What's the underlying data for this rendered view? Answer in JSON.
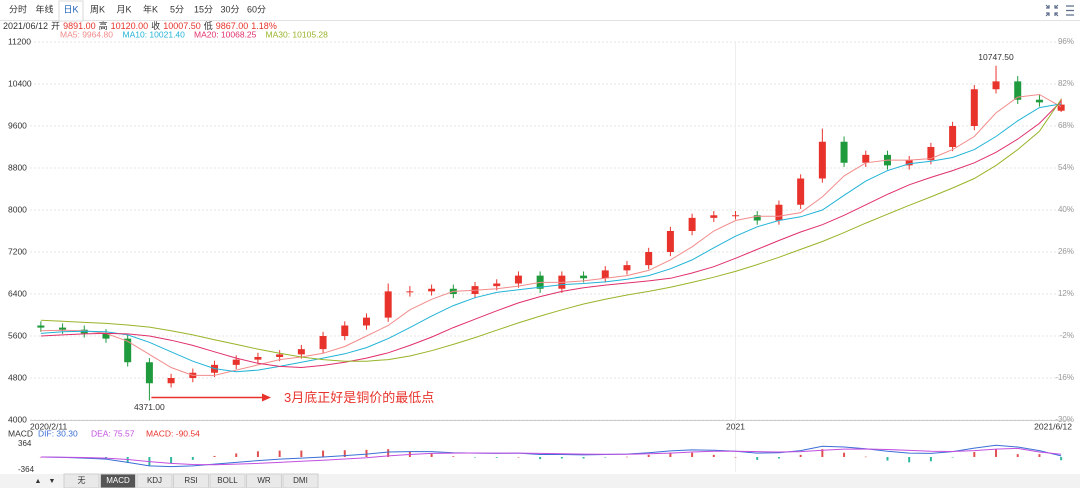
{
  "toolbar": {
    "tabs": [
      "分时",
      "年线",
      "日K",
      "周K",
      "月K",
      "年K",
      "5分",
      "15分",
      "30分",
      "60分"
    ],
    "active": 2
  },
  "info": [
    "2021/06/12",
    "开",
    "9891.00",
    "高",
    "10120.00",
    "收",
    "10007.50",
    "低",
    "9867.00",
    "1.18%"
  ],
  "chart_data": [
    {
      "type": "candlestick",
      "categories": [
        "2020/2/11",
        null,
        null,
        null,
        null,
        null,
        null,
        null,
        null,
        null,
        null,
        null,
        null,
        null,
        null,
        null,
        null,
        null,
        null,
        null,
        null,
        null,
        null,
        null,
        null,
        null,
        null,
        null,
        null,
        null,
        null,
        null,
        "2021",
        null,
        null,
        null,
        null,
        null,
        null,
        null,
        null,
        null,
        null,
        null,
        null,
        null,
        null,
        "2021/6/12"
      ],
      "open": [
        5800,
        5760,
        5720,
        5650,
        5550,
        5100,
        4700,
        4800,
        4900,
        5050,
        5150,
        5200,
        5250,
        5350,
        5600,
        5800,
        5950,
        6450,
        6450,
        6500,
        6400,
        6550,
        6600,
        6750,
        6500,
        6750,
        6700,
        6850,
        6950,
        7200,
        7600,
        7850,
        7900,
        7900,
        7800,
        8100,
        8600,
        9300,
        8900,
        9050,
        8850,
        8950,
        9200,
        9600,
        10300,
        10450,
        10100,
        9891
      ],
      "high": [
        5880,
        5840,
        5800,
        5730,
        5630,
        5180,
        4880,
        4980,
        5130,
        5230,
        5280,
        5330,
        5430,
        5680,
        5880,
        6030,
        6600,
        6550,
        6580,
        6580,
        6630,
        6680,
        6830,
        6830,
        6830,
        6830,
        6930,
        7030,
        7280,
        7680,
        7930,
        7980,
        7980,
        7980,
        8180,
        8680,
        9550,
        9400,
        9130,
        9130,
        9030,
        9280,
        9680,
        10380,
        10747.5,
        10550,
        10200,
        10120
      ],
      "low": [
        5680,
        5640,
        5570,
        5470,
        5020,
        4371,
        4620,
        4720,
        4820,
        4970,
        5070,
        5120,
        5170,
        5270,
        5520,
        5720,
        5870,
        6350,
        6370,
        6320,
        6320,
        6470,
        6520,
        6420,
        6420,
        6620,
        6620,
        6770,
        6870,
        7120,
        7520,
        7770,
        7820,
        7720,
        7720,
        8020,
        8520,
        8820,
        8820,
        8770,
        8770,
        8870,
        9120,
        9520,
        10220,
        10020,
        9970,
        9867
      ],
      "close": [
        5760,
        5720,
        5650,
        5550,
        5100,
        4700,
        4800,
        4900,
        5050,
        5150,
        5200,
        5250,
        5350,
        5600,
        5800,
        5950,
        6450,
        6450,
        6500,
        6400,
        6550,
        6600,
        6750,
        6500,
        6750,
        6700,
        6850,
        6950,
        7200,
        7600,
        7850,
        7900,
        7900,
        7800,
        8100,
        8600,
        9300,
        8900,
        9050,
        8850,
        8950,
        9200,
        9600,
        10300,
        10450,
        10100,
        10050,
        10007.5
      ],
      "up_color": "#e8332c",
      "down_color": "#1f9a3c",
      "series": [
        {
          "name": "MA5",
          "label": "MA5: 9964.80",
          "color": "#f28b8b",
          "values": [
            5700,
            5710,
            5700,
            5650,
            5500,
            5250,
            5000,
            4850,
            4850,
            4950,
            5050,
            5150,
            5200,
            5270,
            5400,
            5600,
            5800,
            6100,
            6300,
            6450,
            6470,
            6500,
            6550,
            6620,
            6620,
            6650,
            6700,
            6750,
            6850,
            7050,
            7300,
            7600,
            7800,
            7880,
            7880,
            7950,
            8250,
            8650,
            8900,
            8950,
            8950,
            8980,
            9150,
            9400,
            9850,
            10150,
            10200,
            9964.8
          ]
        },
        {
          "name": "MA10",
          "label": "MA10: 10021.40",
          "color": "#22b3d6",
          "values": [
            5650,
            5680,
            5690,
            5680,
            5620,
            5480,
            5300,
            5120,
            4980,
            4920,
            4950,
            5020,
            5100,
            5180,
            5260,
            5380,
            5550,
            5760,
            5980,
            6180,
            6330,
            6430,
            6480,
            6530,
            6580,
            6600,
            6630,
            6680,
            6750,
            6880,
            7050,
            7280,
            7500,
            7680,
            7800,
            7870,
            8000,
            8280,
            8550,
            8750,
            8880,
            8930,
            9000,
            9150,
            9400,
            9700,
            9950,
            10021.4
          ]
        },
        {
          "name": "MA20",
          "label": "MA20: 10068.25",
          "color": "#e0306a",
          "values": [
            5600,
            5620,
            5640,
            5650,
            5640,
            5600,
            5520,
            5420,
            5300,
            5180,
            5080,
            5020,
            5000,
            5040,
            5100,
            5180,
            5280,
            5420,
            5580,
            5760,
            5920,
            6080,
            6230,
            6350,
            6450,
            6520,
            6570,
            6610,
            6650,
            6700,
            6800,
            6920,
            7080,
            7250,
            7420,
            7580,
            7720,
            7900,
            8100,
            8300,
            8480,
            8620,
            8750,
            8900,
            9100,
            9350,
            9650,
            10068.25
          ]
        },
        {
          "name": "MA30",
          "label": "MA30: 10105.28",
          "color": "#98b42a",
          "values": [
            5900,
            5880,
            5860,
            5840,
            5810,
            5770,
            5700,
            5620,
            5530,
            5440,
            5350,
            5270,
            5200,
            5150,
            5120,
            5120,
            5150,
            5220,
            5320,
            5440,
            5570,
            5710,
            5850,
            5980,
            6100,
            6210,
            6300,
            6380,
            6450,
            6530,
            6620,
            6720,
            6830,
            6960,
            7100,
            7250,
            7400,
            7570,
            7750,
            7920,
            8090,
            8250,
            8420,
            8600,
            8850,
            9150,
            9500,
            10105.28
          ]
        }
      ],
      "ylim": [
        4000,
        11200
      ],
      "yticks": [
        11200,
        10400,
        9600,
        8800,
        8000,
        7200,
        6400,
        5600,
        4800,
        4000
      ],
      "y2lim": [
        -30,
        96
      ],
      "y2ticks": [
        {
          "value": 96,
          "label": "96%"
        },
        {
          "value": 82,
          "label": "82%"
        },
        {
          "value": 68,
          "label": "68%"
        },
        {
          "value": 54,
          "label": "54%"
        },
        {
          "value": 40,
          "label": "40%"
        },
        {
          "value": 26,
          "label": "26%"
        },
        {
          "value": 12,
          "label": "12%"
        },
        {
          "value": -2,
          "label": "-2%"
        },
        {
          "value": -16,
          "label": "-16%"
        },
        {
          "value": -30,
          "label": "-30%"
        }
      ],
      "grid": true,
      "high_label": "10747.50",
      "low_label": "4371.00",
      "annotation": "3月底正好是铜价的最低点"
    },
    {
      "type": "macd",
      "title": "MACD",
      "series": [
        {
          "name": "DIF",
          "label": "DIF: 30.30",
          "color": "#3b6fd6",
          "values": [
            0,
            -10,
            -30,
            -60,
            -150,
            -250,
            -270,
            -250,
            -200,
            -150,
            -100,
            -60,
            -30,
            0,
            40,
            80,
            140,
            150,
            150,
            120,
            110,
            100,
            110,
            70,
            70,
            60,
            70,
            80,
            120,
            170,
            200,
            190,
            160,
            110,
            120,
            180,
            300,
            280,
            230,
            160,
            110,
            100,
            150,
            250,
            330,
            280,
            180,
            30.3
          ]
        },
        {
          "name": "DEA",
          "label": "DEA: 75.57",
          "color": "#c24fe0",
          "values": [
            0,
            -5,
            -15,
            -30,
            -70,
            -130,
            -180,
            -210,
            -215,
            -200,
            -180,
            -150,
            -120,
            -90,
            -55,
            -20,
            30,
            70,
            100,
            110,
            112,
            110,
            110,
            100,
            90,
            80,
            75,
            77,
            90,
            110,
            140,
            160,
            160,
            150,
            140,
            150,
            190,
            220,
            225,
            210,
            185,
            160,
            155,
            180,
            220,
            240,
            140,
            75.57
          ]
        }
      ],
      "histogram": {
        "label": "MACD: -90.54",
        "up_color": "#e05050",
        "down_color": "#2fb7a0",
        "values": [
          0,
          -10,
          -30,
          -60,
          -160,
          -240,
          -180,
          -80,
          30,
          100,
          160,
          180,
          180,
          180,
          190,
          200,
          220,
          160,
          100,
          20,
          -4,
          -20,
          0,
          -60,
          -40,
          -40,
          -10,
          6,
          60,
          120,
          120,
          60,
          0,
          -80,
          -40,
          60,
          220,
          120,
          10,
          -100,
          -150,
          -120,
          -10,
          140,
          220,
          80,
          80,
          -90.54
        ]
      },
      "ylim": [
        -364,
        364
      ],
      "yticks": [
        364,
        -364
      ]
    }
  ],
  "bottom_bar": {
    "arrows": [
      "▲",
      "▼"
    ],
    "tabs": [
      "无",
      "MACD",
      "KDJ",
      "RSI",
      "BOLL",
      "WR",
      "DMI"
    ],
    "active": 1
  }
}
